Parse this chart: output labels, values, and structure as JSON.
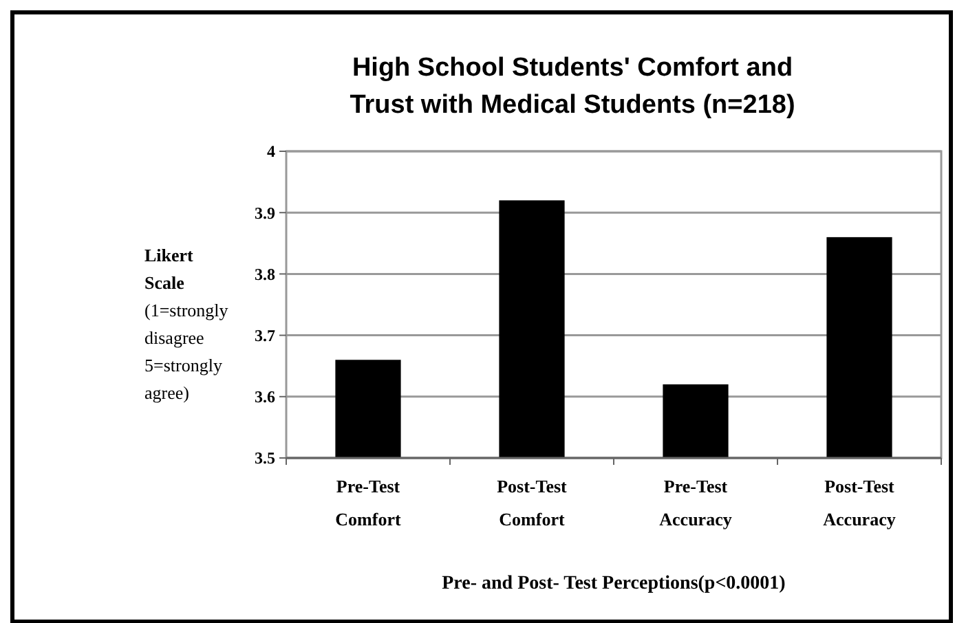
{
  "chart_data": {
    "type": "bar",
    "title": "High School Students' Comfort and Trust with Medical Students (n=218)",
    "xlabel": "Pre- and Post- Test Perceptions(p<0.0001)",
    "ylabel": "Likert Scale (1=strongly disagree 5=strongly agree)",
    "categories": [
      "Pre-Test Comfort",
      "Post-Test Comfort",
      "Pre-Test Accuracy",
      "Post-Test Accuracy"
    ],
    "values": [
      3.66,
      3.92,
      3.62,
      3.86
    ],
    "color": "#000000",
    "ylim": [
      3.5,
      4
    ],
    "yticks": [
      3.5,
      3.6,
      3.7,
      3.8,
      3.9,
      4
    ],
    "grid": "y"
  }
}
